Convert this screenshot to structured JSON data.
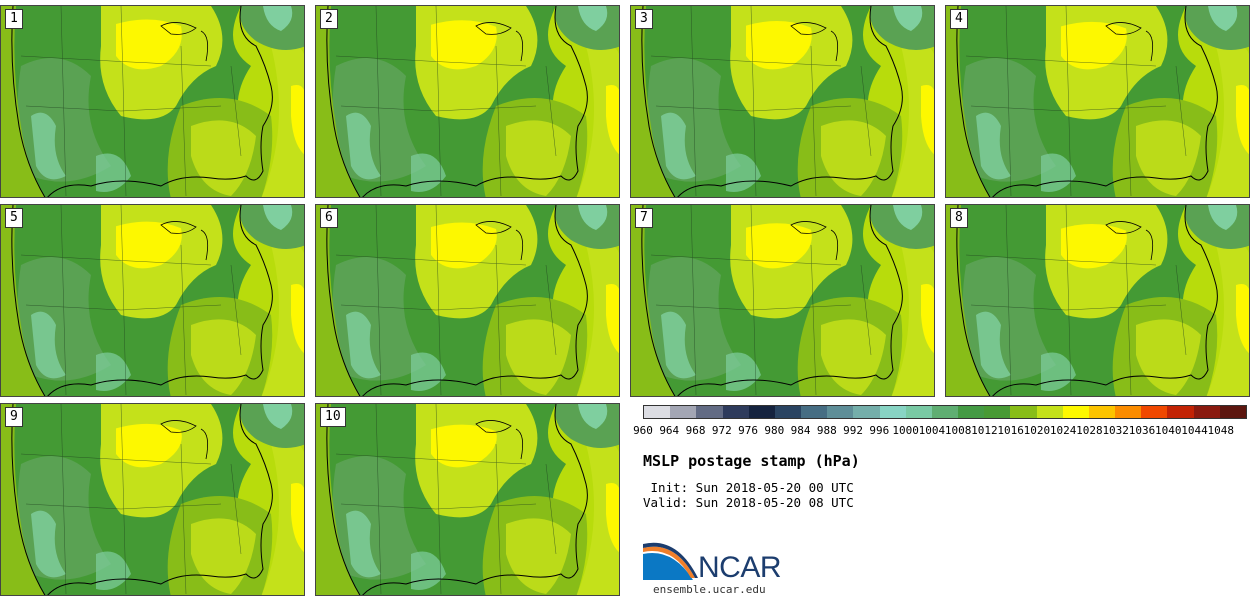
{
  "panels": [
    "1",
    "2",
    "3",
    "4",
    "5",
    "6",
    "7",
    "8",
    "9",
    "10"
  ],
  "colorbar": {
    "levels": [
      "960",
      "964",
      "968",
      "972",
      "976",
      "980",
      "984",
      "988",
      "992",
      "996",
      "1000",
      "1004",
      "1008",
      "1012",
      "1016",
      "1020",
      "1024",
      "1028",
      "1032",
      "1036",
      "1040",
      "1044",
      "1048"
    ],
    "colors": [
      "#dcdde3",
      "#a3a6b4",
      "#626b84",
      "#2e3b5c",
      "#15233f",
      "#2a4462",
      "#466d83",
      "#5e8e98",
      "#74aeaa",
      "#88d4c4",
      "#79c9a4",
      "#5fae72",
      "#449a44",
      "#489a34",
      "#88bd18",
      "#c4e11a",
      "#fdf800",
      "#fcc400",
      "#fb8c00",
      "#f04800",
      "#c22305",
      "#8a1a0f",
      "#5c160f"
    ]
  },
  "title": "MSLP postage stamp (hPa)",
  "init": " Init: Sun 2018-05-20 00 UTC",
  "valid": "Valid: Sun 2018-05-20 08 UTC",
  "logo": {
    "text": "NCAR",
    "url": "ensemble.ucar.edu"
  },
  "map_colors": {
    "ocean": "#b8dc0c",
    "low": "#5aa253",
    "mid": "#449a34",
    "teal": "#7fcf9f",
    "high": "#88bd18",
    "yellowgreen": "#c4e11a",
    "yellow": "#fdf800"
  }
}
